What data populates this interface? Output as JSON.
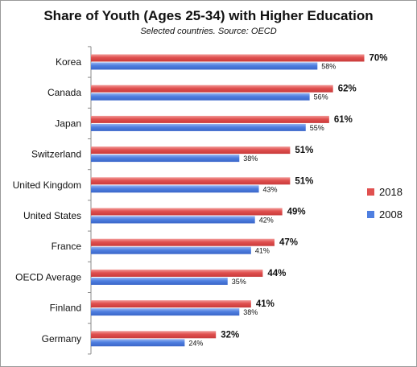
{
  "chart_data": {
    "type": "bar",
    "orientation": "horizontal",
    "title": "Share of Youth (Ages 25-34) with Higher Education",
    "subtitle": "Selected countries. Source: OECD",
    "categories": [
      "Korea",
      "Canada",
      "Japan",
      "Switzerland",
      "United Kingdom",
      "United States",
      "France",
      "OECD Average",
      "Finland",
      "Germany"
    ],
    "series": [
      {
        "name": "2018",
        "values": [
          70,
          62,
          61,
          51,
          51,
          49,
          47,
          44,
          41,
          32
        ],
        "labels": [
          "70%",
          "62%",
          "61%",
          "51%",
          "51%",
          "49%",
          "47%",
          "44%",
          "41%",
          "32%"
        ],
        "color": "#e0504f"
      },
      {
        "name": "2008",
        "values": [
          58,
          56,
          55,
          38,
          43,
          42,
          41,
          35,
          38,
          24
        ],
        "labels": [
          "58%",
          "56%",
          "55%",
          "38%",
          "43%",
          "42%",
          "41%",
          "35%",
          "38%",
          "24%"
        ],
        "color": "#4f7fe0"
      }
    ],
    "legend_position": "right",
    "grid": false
  }
}
